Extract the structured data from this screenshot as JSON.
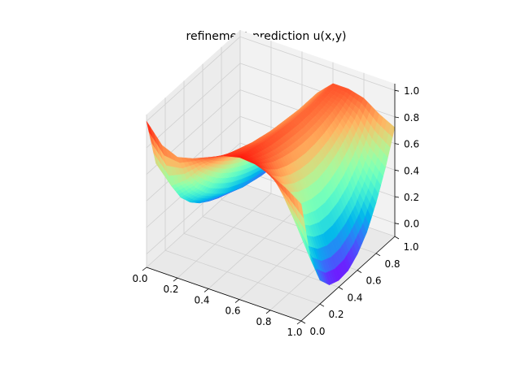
{
  "chart_data": {
    "type": "surface",
    "title": "refinement prediction u(x,y)",
    "colormap": "rainbow",
    "x_ticks": [
      "0.0",
      "0.2",
      "0.4",
      "0.6",
      "0.8",
      "1.0"
    ],
    "y_ticks": [
      "0.0",
      "0.2",
      "0.4",
      "0.6",
      "0.8",
      "1.0"
    ],
    "z_ticks": [
      "0.0",
      "0.2",
      "0.4",
      "0.6",
      "0.8",
      "1.0"
    ],
    "xlim": [
      0,
      1
    ],
    "ylim": [
      0,
      1
    ],
    "zlim": [
      -0.1,
      1.05
    ],
    "grid": true,
    "x": [
      0,
      0.1,
      0.2,
      0.3,
      0.4,
      0.5,
      0.6,
      0.7,
      0.8,
      0.9,
      1.0
    ],
    "y": [
      0,
      0.1,
      0.2,
      0.3,
      0.4,
      0.5,
      0.6,
      0.7,
      0.8,
      0.9,
      1.0
    ],
    "z": [
      [
        1.0,
        0.62,
        0.46,
        0.35,
        0.27,
        0.21,
        0.16,
        0.12,
        0.09,
        0.07,
        0.05
      ],
      [
        0.86,
        0.49,
        0.34,
        0.24,
        0.17,
        0.12,
        0.08,
        0.05,
        0.03,
        0.02,
        0.01
      ],
      [
        0.81,
        0.58,
        0.45,
        0.35,
        0.28,
        0.22,
        0.18,
        0.14,
        0.12,
        0.1,
        0.09
      ],
      [
        0.84,
        0.71,
        0.62,
        0.54,
        0.48,
        0.43,
        0.39,
        0.36,
        0.33,
        0.31,
        0.3
      ],
      [
        0.89,
        0.82,
        0.76,
        0.71,
        0.67,
        0.64,
        0.61,
        0.59,
        0.57,
        0.56,
        0.55
      ],
      [
        0.94,
        0.91,
        0.88,
        0.85,
        0.83,
        0.81,
        0.8,
        0.79,
        0.78,
        0.78,
        0.78
      ],
      [
        0.97,
        0.94,
        0.92,
        0.9,
        0.89,
        0.88,
        0.87,
        0.87,
        0.87,
        0.88,
        0.89
      ],
      [
        0.96,
        0.9,
        0.85,
        0.82,
        0.8,
        0.79,
        0.79,
        0.8,
        0.82,
        0.85,
        0.89
      ],
      [
        0.92,
        0.76,
        0.66,
        0.6,
        0.57,
        0.56,
        0.58,
        0.62,
        0.68,
        0.76,
        0.86
      ],
      [
        0.86,
        0.54,
        0.38,
        0.3,
        0.26,
        0.26,
        0.29,
        0.35,
        0.45,
        0.59,
        0.78
      ],
      [
        0.78,
        0.3,
        0.08,
        -0.02,
        -0.05,
        -0.04,
        0.02,
        0.12,
        0.28,
        0.48,
        0.72
      ]
    ]
  }
}
